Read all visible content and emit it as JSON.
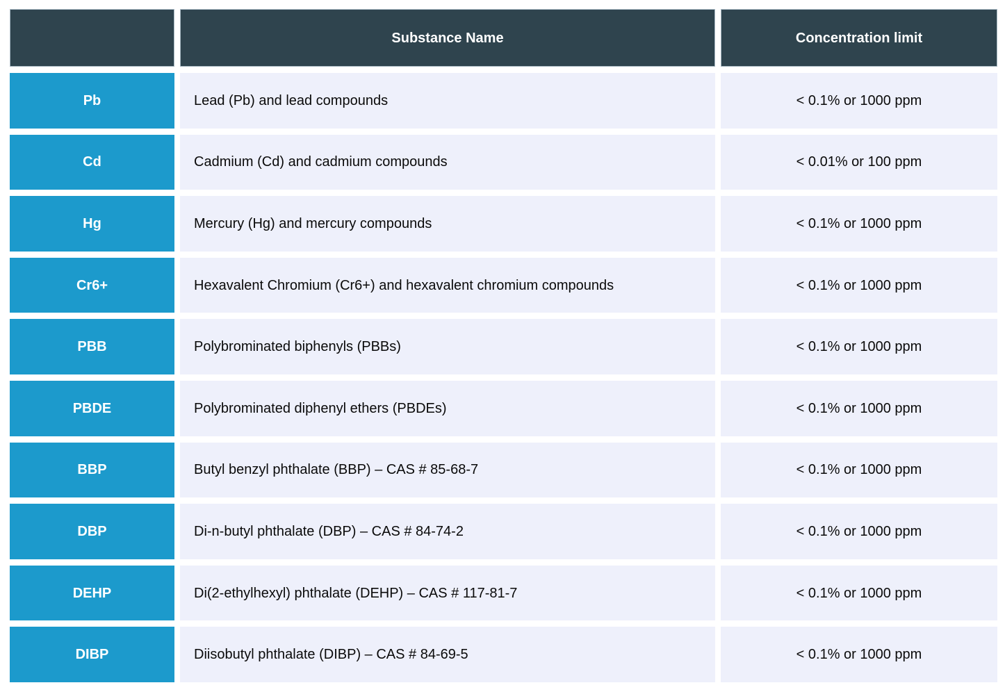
{
  "colors": {
    "header_bg": "#2F444E",
    "header_text": "#FFFFFF",
    "header_border": "#A7B8C2",
    "abbr_bg": "#1C9ACC",
    "row_bg": "#EEF0FB",
    "cell_text": "#0A0A0A"
  },
  "table": {
    "header": {
      "symbol": "",
      "substance": "Substance Name",
      "limit": "Concentration limit"
    },
    "rows": [
      {
        "abbr": "Pb",
        "substance": "Lead (Pb) and lead compounds",
        "limit": "< 0.1% or 1000 ppm"
      },
      {
        "abbr": "Cd",
        "substance": "Cadmium (Cd) and cadmium compounds",
        "limit": "< 0.01% or 100 ppm"
      },
      {
        "abbr": "Hg",
        "substance": "Mercury (Hg) and mercury compounds",
        "limit": "< 0.1% or 1000 ppm"
      },
      {
        "abbr": "Cr6+",
        "substance": "Hexavalent Chromium (Cr6+) and hexavalent chromium compounds",
        "limit": "< 0.1% or 1000 ppm"
      },
      {
        "abbr": "PBB",
        "substance": "Polybrominated biphenyls (PBBs)",
        "limit": "< 0.1% or 1000 ppm"
      },
      {
        "abbr": "PBDE",
        "substance": "Polybrominated diphenyl ethers (PBDEs)",
        "limit": "< 0.1% or 1000 ppm"
      },
      {
        "abbr": "BBP",
        "substance": "Butyl benzyl phthalate (BBP) – CAS # 85-68-7",
        "limit": "< 0.1% or 1000 ppm"
      },
      {
        "abbr": "DBP",
        "substance": "Di-n-butyl phthalate (DBP) – CAS # 84-74-2",
        "limit": "< 0.1% or 1000 ppm"
      },
      {
        "abbr": "DEHP",
        "substance": "Di(2-ethylhexyl) phthalate (DEHP) – CAS # 117-81-7",
        "limit": "< 0.1% or 1000 ppm"
      },
      {
        "abbr": "DIBP",
        "substance": "Diisobutyl phthalate (DIBP) – CAS # 84-69-5",
        "limit": "< 0.1% or 1000 ppm"
      }
    ]
  }
}
